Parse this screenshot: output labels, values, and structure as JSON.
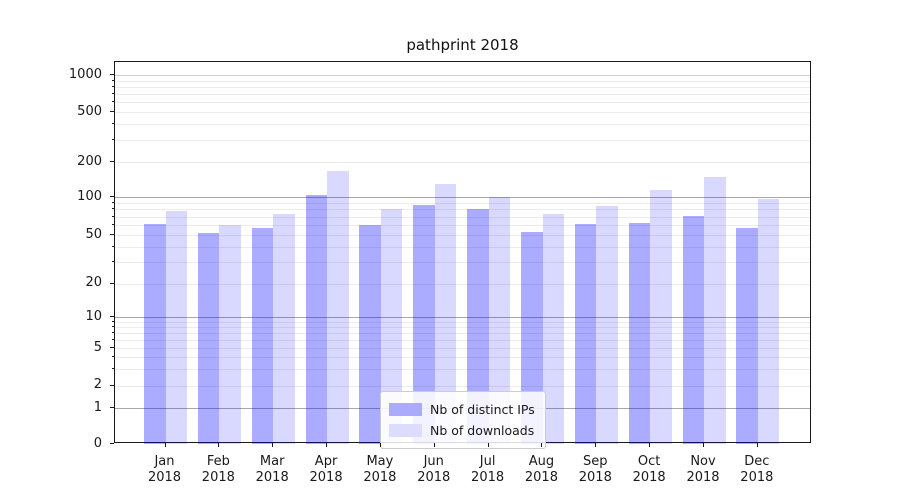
{
  "chart_data": {
    "type": "bar",
    "title": "pathprint 2018",
    "categories": [
      "Jan",
      "Feb",
      "Mar",
      "Apr",
      "May",
      "Jun",
      "Jul",
      "Aug",
      "Sep",
      "Oct",
      "Nov",
      "Dec"
    ],
    "year": "2018",
    "series": [
      {
        "name": "Nb of distinct IPs",
        "color": "rgba(0,0,255,0.33)",
        "swatch": "#aaaaff",
        "values": [
          61,
          52,
          57,
          104,
          60,
          86,
          80,
          53,
          61,
          62,
          71,
          57
        ]
      },
      {
        "name": "Nb of downloads",
        "color": "rgba(0,0,255,0.15)",
        "swatch": "#dcdcfc",
        "values": [
          78,
          60,
          73,
          168,
          81,
          130,
          100,
          74,
          85,
          115,
          148,
          97
        ]
      }
    ],
    "xlabel": "",
    "ylabel": "",
    "yticks": [
      0,
      1,
      2,
      5,
      10,
      20,
      50,
      100,
      200,
      500,
      1000
    ],
    "ylim": [
      0,
      1400
    ],
    "yscale": "symlog",
    "grid": true,
    "legend_position": "lower center (inside plot)"
  }
}
